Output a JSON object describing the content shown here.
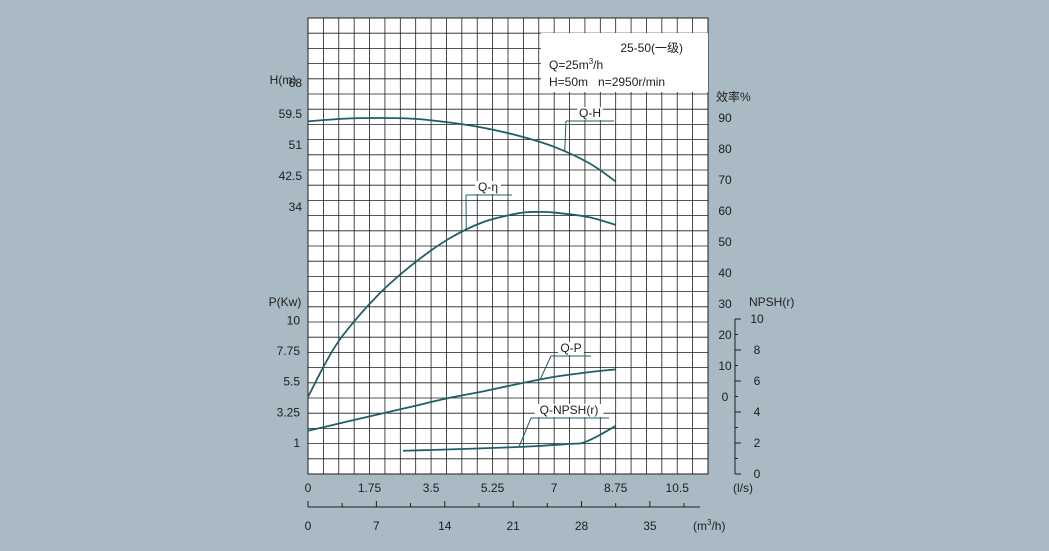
{
  "colors": {
    "background": "#a9bac4",
    "plot_bg": "#ffffff",
    "grid": "#1e1e1e",
    "curve": "#1f5f66",
    "text": "#1d1d1d"
  },
  "chart_data": {
    "type": "line",
    "info_box": {
      "model": "25-50(一级)",
      "flow_prefix": "Q=25m",
      "flow_sup": "3",
      "flow_suffix": "/h",
      "head_speed": "H=50m   n=2950r/min"
    },
    "x_axis": {
      "unit": "(l/s)",
      "range": [
        0,
        11.375
      ],
      "ticks": [
        0,
        1.75,
        3.5,
        5.25,
        7,
        8.75,
        10.5
      ],
      "tick_labels": [
        "0",
        "1.75",
        "3.5",
        "5.25",
        "7",
        "8.75",
        "10.5"
      ]
    },
    "x2_axis": {
      "unit_prefix": "(m",
      "unit_sup": "3",
      "unit_suffix": "/h)",
      "ticks": [
        0,
        7,
        14,
        21,
        28,
        35
      ],
      "tick_labels": [
        "0",
        "7",
        "14",
        "21",
        "28",
        "35"
      ]
    },
    "head_axis": {
      "label": "H(m)",
      "ticks": [
        34,
        42.5,
        51,
        59.5,
        68
      ],
      "tick_labels": [
        "34",
        "42.5",
        "51",
        "59.5",
        "68"
      ]
    },
    "power_axis": {
      "label": "P(Kw)",
      "ticks": [
        1,
        3.25,
        5.5,
        7.75,
        10
      ],
      "tick_labels": [
        "1",
        "3.25",
        "5.5",
        "7.75",
        "10"
      ]
    },
    "efficiency_axis": {
      "label": "效率%",
      "ticks": [
        0,
        10,
        20,
        30,
        40,
        50,
        60,
        70,
        80,
        90
      ],
      "tick_labels": [
        "0",
        "10",
        "20",
        "30",
        "40",
        "50",
        "60",
        "70",
        "80",
        "90"
      ]
    },
    "npsh_axis": {
      "label": "NPSH(r)",
      "ticks": [
        0,
        2,
        4,
        6,
        8,
        10
      ],
      "tick_labels": [
        "0",
        "2",
        "4",
        "6",
        "8",
        "10"
      ]
    },
    "series": [
      {
        "name": "Q-H",
        "axis": "head",
        "x": [
          0,
          1,
          2,
          3,
          4,
          5,
          6,
          7,
          8,
          8.75
        ],
        "y": [
          57.5,
          58.2,
          58.4,
          58.2,
          57.2,
          55.7,
          53.5,
          50.5,
          46.0,
          41.0
        ]
      },
      {
        "name": "Q-η",
        "axis": "efficiency",
        "x": [
          0,
          0.5,
          1,
          2,
          3,
          4,
          5,
          6,
          6.5,
          7,
          8,
          8.75
        ],
        "y": [
          0,
          11,
          20,
          33,
          43,
          51,
          56.5,
          59.3,
          59.7,
          59.5,
          58,
          55.5
        ]
      },
      {
        "name": "Q-P",
        "axis": "power",
        "x": [
          0,
          1,
          2,
          3,
          4,
          5,
          6,
          7,
          8,
          8.75
        ],
        "y": [
          1.9,
          2.5,
          3.1,
          3.7,
          4.3,
          4.8,
          5.35,
          5.85,
          6.2,
          6.4
        ]
      },
      {
        "name": "Q-NPSH(r)",
        "axis": "npsh",
        "x": [
          2.7,
          3.5,
          4.5,
          5.5,
          6.5,
          7.5,
          7.8,
          8.2,
          8.75
        ],
        "y": [
          1.5,
          1.55,
          1.62,
          1.7,
          1.8,
          1.95,
          2.0,
          2.4,
          3.1
        ]
      }
    ]
  }
}
